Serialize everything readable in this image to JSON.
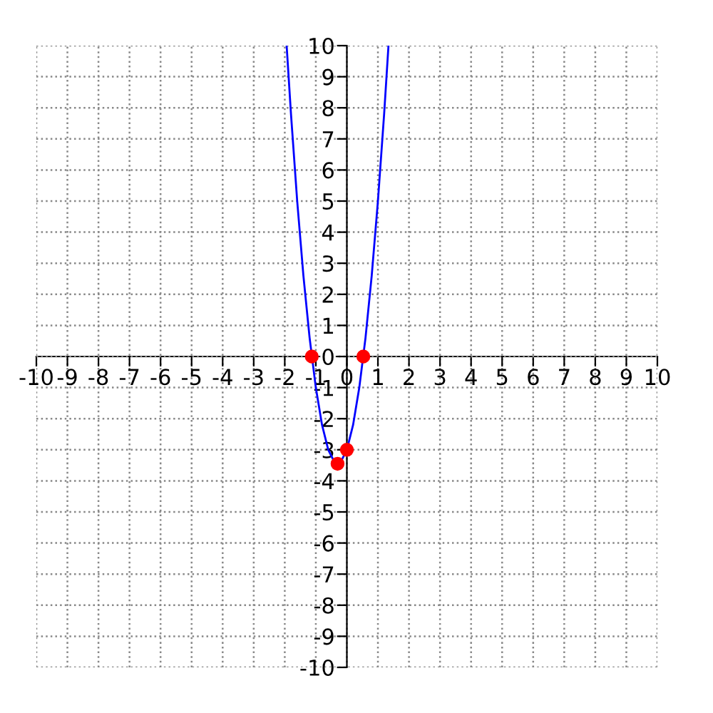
{
  "chart_data": {
    "type": "line",
    "series": [
      {
        "color": "#0000ff",
        "marker": "none",
        "x": [
          -1.94,
          -1.8,
          -1.6,
          -1.4,
          -1.2,
          -1.0,
          -0.8,
          -0.6,
          -0.4,
          -0.3,
          -0.2,
          0,
          0.2,
          0.4,
          0.6,
          0.8,
          1.0,
          1.2,
          1.34
        ],
        "values": [
          10.0,
          7.8,
          5.0,
          2.6,
          0.6,
          -1,
          -2.2,
          -3,
          -3.4,
          -3.45,
          -3.4,
          -3,
          -2.2,
          -1,
          0.6,
          2.6,
          5,
          7.8,
          10.0
        ]
      },
      {
        "type": "scatter",
        "color": "#ff0000",
        "marker": "circle",
        "x": [
          -1.13,
          0.53,
          -0.3,
          0
        ],
        "values": [
          0,
          0,
          -3.45,
          -3
        ]
      }
    ],
    "xlim": [
      -10,
      10
    ],
    "ylim": [
      -10,
      10
    ],
    "xticks": [
      -10,
      -9,
      -8,
      -7,
      -6,
      -5,
      -4,
      -3,
      -2,
      -1,
      0,
      1,
      2,
      3,
      4,
      5,
      6,
      7,
      8,
      9,
      10
    ],
    "yticks": [
      -10,
      -9,
      -8,
      -7,
      -6,
      -5,
      -4,
      -3,
      -2,
      -1,
      0,
      1,
      2,
      3,
      4,
      5,
      6,
      7,
      8,
      9,
      10
    ],
    "grid": true
  }
}
